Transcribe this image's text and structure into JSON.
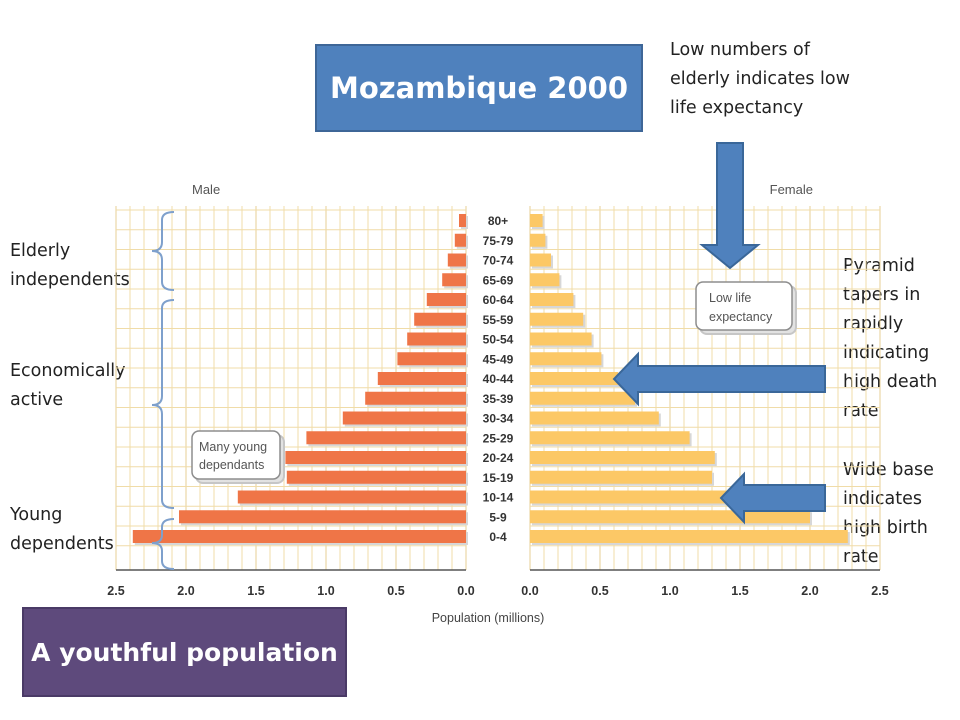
{
  "title": "Mozambique 2000",
  "footer_title": "A youthful population",
  "colors": {
    "title_box": "#4f81bd",
    "footer_box": "#5e4a7c",
    "male": "#ef7547",
    "female": "#fcc866",
    "arrow": "#4f81bd",
    "grid": "#f0dca8"
  },
  "annotations": {
    "top_right": [
      "Low numbers of",
      "elderly indicates low",
      "life expectancy"
    ],
    "right_middle": [
      "Pyramid",
      "tapers in",
      "rapidly",
      "indicating",
      "high death",
      "rate"
    ],
    "right_bottom": [
      "Wide base",
      "indicates",
      "high birth",
      "rate"
    ],
    "elderly": [
      "Elderly",
      "independents"
    ],
    "economic": [
      "Economically",
      "active"
    ],
    "young": [
      "Young",
      "dependents"
    ]
  },
  "chart_data": {
    "type": "bar",
    "orientation": "population-pyramid",
    "male_label": "Male",
    "female_label": "Female",
    "xlabel": "Population (millions)",
    "xlim": [
      0,
      2.5
    ],
    "x_ticks_male": [
      "2.5",
      "2.0",
      "1.5",
      "1.0",
      "0.5",
      "0.0"
    ],
    "x_ticks_female": [
      "0.0",
      "0.5",
      "1.0",
      "1.5",
      "2.0",
      "2.5"
    ],
    "categories": [
      "80+",
      "75-79",
      "70-74",
      "65-69",
      "60-64",
      "55-59",
      "50-54",
      "45-49",
      "40-44",
      "35-39",
      "30-34",
      "25-29",
      "20-24",
      "15-19",
      "10-14",
      "5-9",
      "0-4"
    ],
    "series": [
      {
        "name": "Male",
        "values": [
          0.05,
          0.08,
          0.13,
          0.17,
          0.28,
          0.37,
          0.42,
          0.49,
          0.63,
          0.72,
          0.88,
          1.14,
          1.29,
          1.28,
          1.63,
          2.05,
          2.38
        ]
      },
      {
        "name": "Female",
        "values": [
          0.09,
          0.11,
          0.15,
          0.21,
          0.31,
          0.38,
          0.44,
          0.51,
          0.63,
          0.75,
          0.92,
          1.14,
          1.32,
          1.3,
          1.58,
          2.0,
          2.27
        ]
      }
    ],
    "callouts": [
      "Low life",
      "expectancy",
      "Many young",
      "dependants"
    ],
    "grid": true
  }
}
